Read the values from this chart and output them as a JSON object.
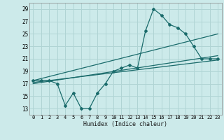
{
  "title": "",
  "xlabel": "Humidex (Indice chaleur)",
  "background_color": "#cceaea",
  "grid_color": "#b0d4d4",
  "line_color": "#1a6b6b",
  "xlim": [
    -0.5,
    23.5
  ],
  "ylim": [
    12,
    30
  ],
  "xticks": [
    0,
    1,
    2,
    3,
    4,
    5,
    6,
    7,
    8,
    9,
    10,
    11,
    12,
    13,
    14,
    15,
    16,
    17,
    18,
    19,
    20,
    21,
    22,
    23
  ],
  "yticks": [
    13,
    15,
    17,
    19,
    21,
    23,
    25,
    27,
    29
  ],
  "series1_x": [
    0,
    1,
    2,
    3,
    4,
    5,
    6,
    7,
    8,
    9,
    10,
    11,
    12,
    13,
    14,
    15,
    16,
    17,
    18,
    19,
    20,
    21,
    22,
    23
  ],
  "series1_y": [
    17.5,
    17.5,
    17.5,
    17.0,
    13.5,
    15.5,
    13.0,
    13.0,
    15.5,
    17.0,
    19.0,
    19.5,
    20.0,
    19.5,
    25.5,
    29.0,
    28.0,
    26.5,
    26.0,
    25.0,
    23.0,
    21.0,
    21.0,
    21.0
  ],
  "tline1_x": [
    0,
    23
  ],
  "tline1_y": [
    17.2,
    20.8
  ],
  "tline2_x": [
    0,
    23
  ],
  "tline2_y": [
    17.5,
    25.0
  ],
  "tline3_x": [
    0,
    23
  ],
  "tline3_y": [
    17.0,
    21.5
  ]
}
